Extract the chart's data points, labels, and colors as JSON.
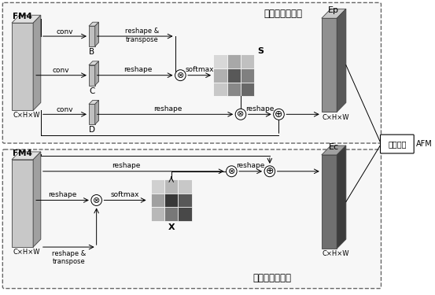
{
  "bg_color": "#ffffff",
  "matrix_s_colors": [
    [
      "#d8d8d8",
      "#a8a8a8",
      "#c0c0c0"
    ],
    [
      "#b0b0b0",
      "#585858",
      "#808080"
    ],
    [
      "#c8c8c8",
      "#888888",
      "#686868"
    ]
  ],
  "matrix_x_colors": [
    [
      "#d0d0d0",
      "#b8b8b8",
      "#c8c8c8"
    ],
    [
      "#a0a0a0",
      "#383838",
      "#585858"
    ],
    [
      "#b8b8b8",
      "#787878",
      "#484848"
    ]
  ],
  "title_top": "位置注意力模块",
  "title_bottom": "通道注意力模块",
  "label_afm": "AFM",
  "label_add": "相加融合"
}
